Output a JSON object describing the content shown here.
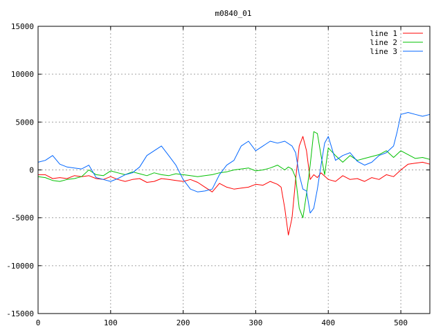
{
  "chart_data": {
    "type": "line",
    "title": "m0840_01",
    "xlabel": "",
    "ylabel": "",
    "xlim": [
      0,
      540
    ],
    "ylim": [
      -15000,
      15000
    ],
    "x_ticks": [
      0,
      100,
      200,
      300,
      400,
      500
    ],
    "y_ticks": [
      -15000,
      -10000,
      -5000,
      0,
      5000,
      10000,
      15000
    ],
    "grid": true,
    "legend_position": "top-right",
    "series": [
      {
        "name": "line 1",
        "color": "#ff0000",
        "x": [
          0,
          10,
          20,
          30,
          40,
          50,
          60,
          70,
          80,
          90,
          100,
          110,
          120,
          130,
          140,
          150,
          160,
          170,
          180,
          190,
          200,
          210,
          220,
          230,
          240,
          250,
          260,
          270,
          280,
          290,
          300,
          310,
          320,
          330,
          335,
          340,
          345,
          350,
          355,
          360,
          365,
          370,
          375,
          380,
          385,
          390,
          400,
          410,
          420,
          430,
          440,
          450,
          460,
          470,
          480,
          490,
          500,
          510,
          520,
          530,
          540
        ],
        "y": [
          -500,
          -500,
          -900,
          -800,
          -900,
          -600,
          -700,
          -600,
          -900,
          -1000,
          -700,
          -1000,
          -1200,
          -1000,
          -900,
          -1300,
          -1200,
          -900,
          -1000,
          -1100,
          -1200,
          -1000,
          -1300,
          -1800,
          -2300,
          -1400,
          -1800,
          -2000,
          -1900,
          -1800,
          -1500,
          -1600,
          -1200,
          -1500,
          -1800,
          -4000,
          -6800,
          -5000,
          -1000,
          2500,
          3500,
          2000,
          -1000,
          -500,
          -800,
          -300,
          -1000,
          -1200,
          -600,
          -1000,
          -900,
          -1200,
          -800,
          -1000,
          -500,
          -700,
          0,
          600,
          700,
          800,
          600
        ]
      },
      {
        "name": "line 2",
        "color": "#00c000",
        "x": [
          0,
          10,
          20,
          30,
          40,
          50,
          60,
          70,
          80,
          90,
          100,
          110,
          120,
          130,
          140,
          150,
          160,
          170,
          180,
          190,
          200,
          210,
          220,
          230,
          240,
          250,
          260,
          270,
          280,
          290,
          300,
          310,
          320,
          330,
          340,
          345,
          350,
          355,
          360,
          365,
          370,
          375,
          380,
          385,
          390,
          395,
          400,
          410,
          420,
          430,
          440,
          450,
          460,
          470,
          480,
          490,
          500,
          510,
          520,
          530,
          540
        ],
        "y": [
          -700,
          -800,
          -1100,
          -1200,
          -1000,
          -900,
          -700,
          0,
          -500,
          -600,
          -100,
          -300,
          -500,
          -200,
          -400,
          -600,
          -300,
          -500,
          -600,
          -400,
          -500,
          -600,
          -700,
          -600,
          -500,
          -300,
          -200,
          0,
          100,
          200,
          -100,
          0,
          200,
          500,
          0,
          300,
          100,
          -800,
          -4000,
          -5000,
          -2500,
          500,
          4000,
          3800,
          1500,
          -500,
          2300,
          1500,
          800,
          1500,
          1000,
          1200,
          1400,
          1600,
          2000,
          1300,
          2000,
          1600,
          1200,
          1300,
          1100
        ]
      },
      {
        "name": "line 3",
        "color": "#0066ff",
        "x": [
          0,
          10,
          20,
          30,
          40,
          50,
          60,
          70,
          80,
          90,
          100,
          110,
          120,
          130,
          140,
          150,
          160,
          170,
          180,
          190,
          200,
          210,
          220,
          230,
          240,
          250,
          260,
          270,
          280,
          290,
          300,
          310,
          320,
          330,
          340,
          350,
          355,
          360,
          365,
          370,
          375,
          380,
          385,
          390,
          395,
          400,
          410,
          420,
          430,
          440,
          450,
          460,
          470,
          480,
          490,
          495,
          500,
          510,
          520,
          530,
          540
        ],
        "y": [
          800,
          1000,
          1500,
          600,
          300,
          200,
          100,
          500,
          -800,
          -1000,
          -1200,
          -900,
          -500,
          -300,
          300,
          1500,
          2000,
          2500,
          1500,
          500,
          -1000,
          -2000,
          -2300,
          -2200,
          -2000,
          -500,
          500,
          1000,
          2500,
          3000,
          2000,
          2500,
          3000,
          2800,
          3000,
          2500,
          1800,
          -500,
          -2000,
          -2200,
          -4500,
          -4000,
          -2000,
          500,
          2800,
          3500,
          1000,
          1500,
          1800,
          900,
          500,
          800,
          1500,
          1800,
          2500,
          4000,
          5800,
          6000,
          5800,
          5600,
          5800
        ]
      }
    ]
  }
}
